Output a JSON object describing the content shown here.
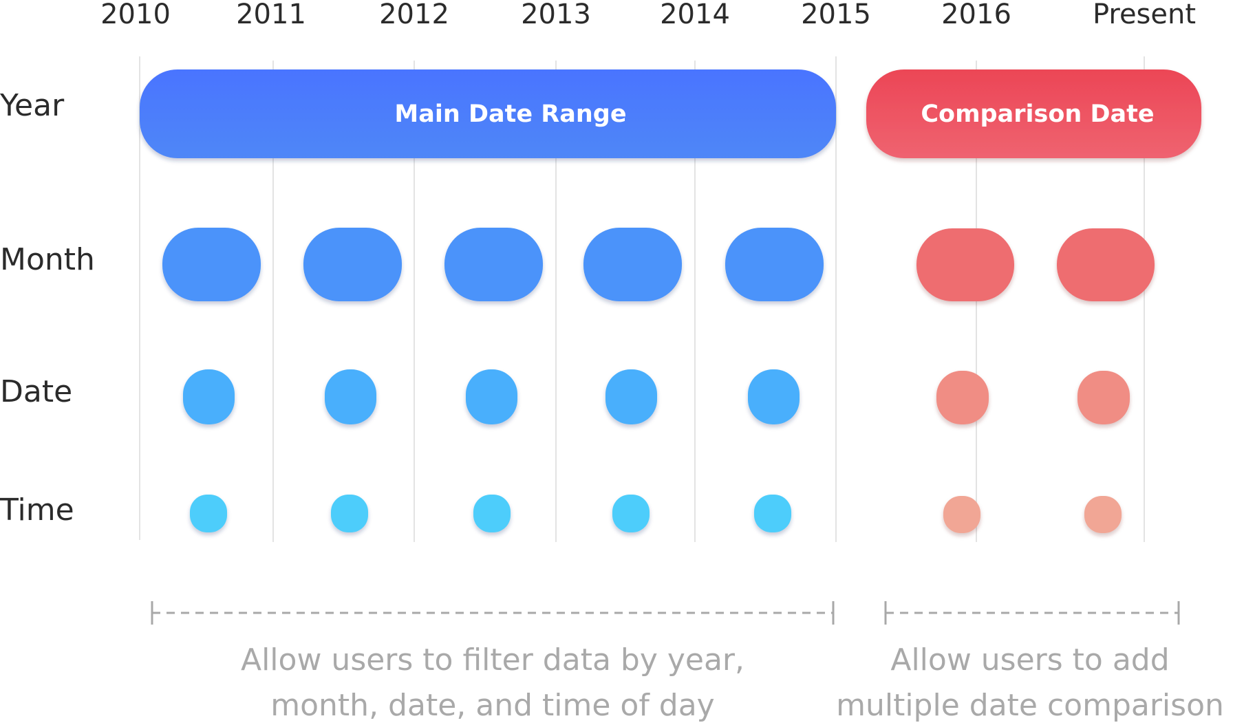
{
  "years": [
    "2010",
    "2011",
    "2012",
    "2013",
    "2014",
    "2015",
    "2016",
    "Present"
  ],
  "rows": [
    "Year",
    "Month",
    "Date",
    "Time"
  ],
  "main_range": {
    "label": "Main Date Range",
    "colors": {
      "year": [
        "#4a74ff",
        "#4f87f7"
      ],
      "month": "#4b93fa",
      "date": "#4aaffc",
      "time": "#4dcdfb"
    }
  },
  "comparison": {
    "label": "Comparison Date",
    "colors": {
      "year": [
        "#ec4656",
        "#ef6370"
      ],
      "month": "#ee6d70",
      "date": "#f08d84",
      "time": "#f1a695"
    }
  },
  "notes": {
    "main": [
      "Allow users to filter data by year,",
      "month, date, and time of day"
    ],
    "comparison": [
      "Allow users to add",
      "multiple date comparison"
    ]
  },
  "icons": {
    "bracket": "dashed-bracket-icon"
  }
}
